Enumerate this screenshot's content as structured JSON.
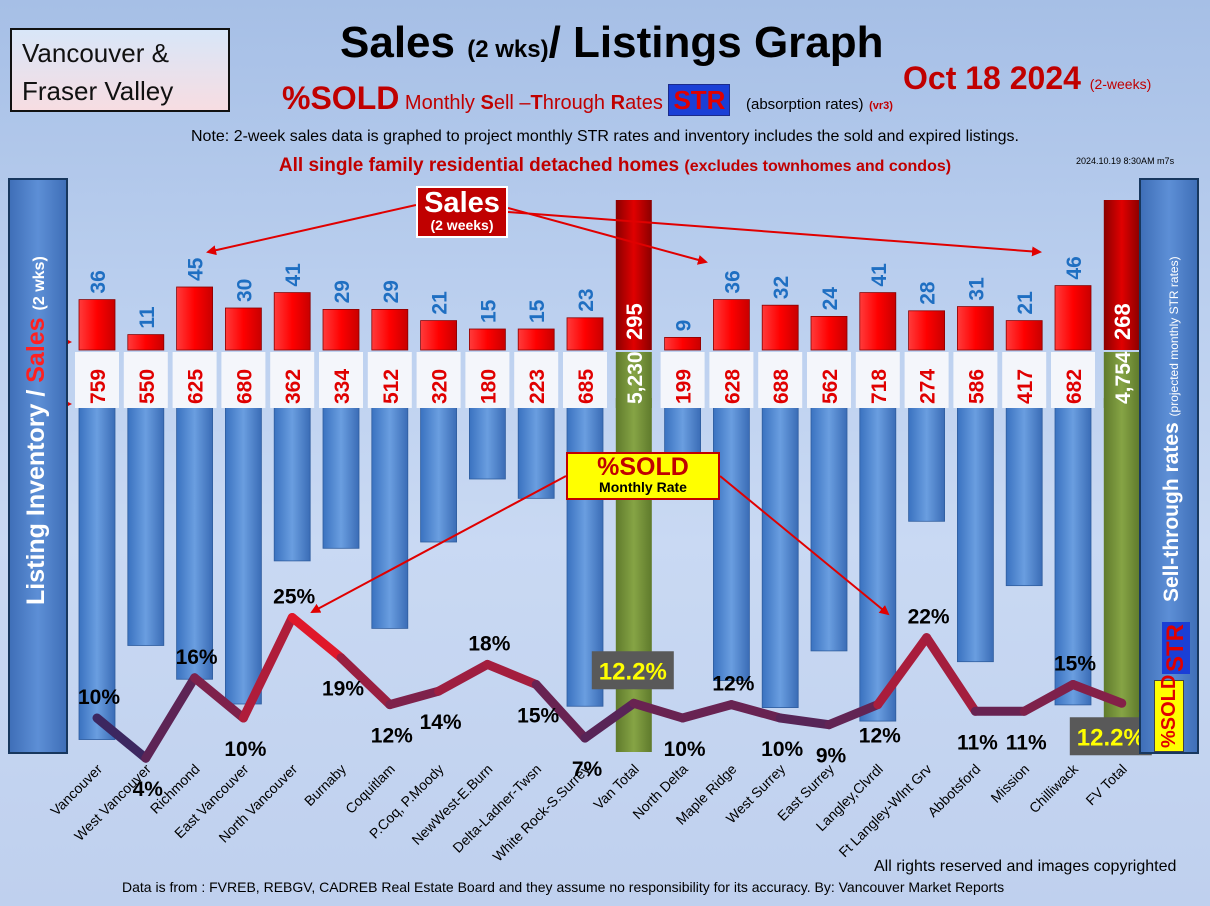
{
  "header": {
    "region": [
      "Vancouver &",
      "Fraser Valley"
    ],
    "title_main": "Sales",
    "title_small": "(2 wks)",
    "title_rest": "/ Listings Graph",
    "subtitle_sold": "%SOLD",
    "subtitle_pre": "Monthly",
    "subtitle_S": "S",
    "subtitle_ell": "ell –",
    "subtitle_T": "T",
    "subtitle_hrough": "hrough",
    "subtitle_R": "R",
    "subtitle_ates": "ates",
    "subtitle_str": "STR",
    "subtitle_absorption": "(absorption rates)",
    "subtitle_version": "(vr3)",
    "date": "Oct 18  2024",
    "date_period": "(2-weeks)",
    "note": "Note: 2-week sales data is graphed to project monthly STR rates and inventory includes the sold and expired listings.",
    "scope_main": "All single family residential detached homes",
    "scope_sub": "(excludes townhomes and condos)",
    "stamp": "2024.10.19 8:30AM m7s"
  },
  "side_labels": {
    "left_a": "Listing Inventory /",
    "left_b": "Sales",
    "left_c": "(2 wks)",
    "right_a": "Sell-through rates",
    "right_b": "(projected monthly STR rates)",
    "right_str": "STR",
    "right_sold": "%SOLD"
  },
  "callouts": {
    "sales_title": "Sales",
    "sales_sub": "(2 weeks)",
    "sold_title": "%SOLD",
    "sold_sub": "Monthly Rate"
  },
  "footer": {
    "rights": "All rights reserved and  images copyrighted",
    "source": "Data is from : FVREB, REBGV, CADREB Real Estate Board and they assume no responsibility for its accuracy. By: Vancouver Market Reports"
  },
  "colors": {
    "sales_bar": "#ff1a1a",
    "total_bar": "#b00000",
    "inventory_bar": "#4d88d4",
    "total_inventory_bar": "#76923c",
    "sales_label": "#1f6fc2",
    "inventory_label": "#e00000",
    "line_low": "#1b2a6b",
    "line_high": "#e0182a"
  },
  "chart_data": {
    "type": "bar",
    "categories": [
      "Vancouver",
      "West Vancouver",
      "Richmond",
      "East Vancouver",
      "North Vancouver",
      "Burnaby",
      "Coquitlam",
      "P.Coq, P.Moody",
      "NewWest-E.Burn",
      "Delta-Ladner-Twsn",
      "White Rock-S.Surrey",
      "Van Total",
      "North Delta",
      "Maple Ridge",
      "West Surrey",
      "East Surrey",
      "Langley,Clvrdl",
      "Ft Langley-Wlnt Grv",
      "Abbotsford",
      "Mission",
      "Chilliwack",
      "FV Total"
    ],
    "series": [
      {
        "name": "Sales",
        "label_text": [
          "36",
          "11",
          "45",
          "30",
          "41",
          "29",
          "29",
          "21",
          "15",
          "15",
          "23",
          "295",
          "9",
          "36",
          "32",
          "24",
          "41",
          "28",
          "31",
          "21",
          "46",
          "268"
        ],
        "values": [
          36,
          11,
          45,
          30,
          41,
          29,
          29,
          21,
          15,
          15,
          23,
          295,
          9,
          36,
          32,
          24,
          41,
          28,
          31,
          21,
          46,
          268
        ]
      },
      {
        "name": "Listing Inventory",
        "label_text": [
          "759",
          "550",
          "625",
          "680",
          "362",
          "334",
          "512",
          "320",
          "180",
          "223",
          "685",
          "5,230",
          "199",
          "628",
          "688",
          "562",
          "718",
          "274",
          "586",
          "417",
          "682",
          "4,754"
        ],
        "values": [
          759,
          550,
          625,
          680,
          362,
          334,
          512,
          320,
          180,
          223,
          685,
          5230,
          199,
          628,
          688,
          562,
          718,
          274,
          586,
          417,
          682,
          4754
        ]
      },
      {
        "name": "%SOLD Monthly Rate",
        "label_text": [
          "10%",
          "4%",
          "16%",
          "10%",
          "25%",
          "19%",
          "12%",
          "14%",
          "18%",
          "15%",
          "7%",
          "12.2%",
          "10%",
          "12%",
          "10%",
          "9%",
          "12%",
          "22%",
          "11%",
          "11%",
          "15%",
          "12.2%"
        ],
        "values": [
          10,
          4,
          16,
          10,
          25,
          19,
          12,
          14,
          18,
          15,
          7,
          12.2,
          10,
          12,
          10,
          9,
          12,
          22,
          11,
          11,
          15,
          12.2
        ]
      }
    ],
    "total_categories": [
      "Van Total",
      "FV Total"
    ],
    "ylabel_left": "Listing Inventory / Sales (2 wks)",
    "ylabel_right": "Sell-through rates (projected monthly STR rates)",
    "grid": false,
    "legend": "none"
  }
}
